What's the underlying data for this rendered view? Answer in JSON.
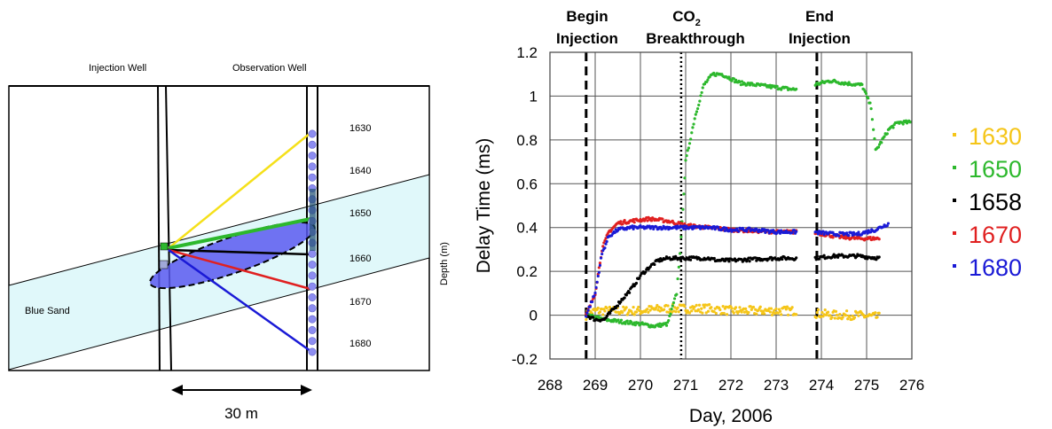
{
  "diagram": {
    "injection_well_label": "Injection Well",
    "observation_well_label": "Observation Well",
    "sand_label": "Blue Sand",
    "depth_axis_label": "Depth (m)",
    "distance_label": "30 m",
    "depth_labels": [
      "1630",
      "1640",
      "1650",
      "1660",
      "1670",
      "1680"
    ]
  },
  "annotations": {
    "begin_injection": [
      "Begin",
      "Injection"
    ],
    "co2_prefix": "CO",
    "co2_subscript": "2",
    "breakthrough": "Breakthrough",
    "end_injection": [
      "End",
      "Injection"
    ]
  },
  "colors": {
    "1630": "#f5c518",
    "1650": "#2db82d",
    "1658": "#000000",
    "1670": "#e02020",
    "1680": "#1a1ad6",
    "sand_fill": "#e0f8fa",
    "plume_fill": "#5b5bf0"
  },
  "chart_data": {
    "type": "scatter",
    "xlabel": "Day, 2006",
    "ylabel": "Delay Time (ms)",
    "xlim": [
      268,
      276
    ],
    "ylim": [
      -0.2,
      1.2
    ],
    "xticks": [
      "268",
      "269",
      "270",
      "271",
      "272",
      "273",
      "274",
      "275",
      "276"
    ],
    "yticks": [
      "-0.2",
      "0",
      "0.2",
      "0.4",
      "0.6",
      "0.8",
      "1",
      "1.2"
    ],
    "grid": true,
    "legend_position": "right",
    "events": [
      {
        "name": "Begin Injection",
        "x": 268.8,
        "style": "dashed"
      },
      {
        "name": "CO2 Breakthrough",
        "x": 270.9,
        "style": "dotted"
      },
      {
        "name": "End Injection",
        "x": 273.9,
        "style": "dashed"
      }
    ],
    "series": [
      {
        "name": "1630",
        "points": [
          [
            268.8,
            0
          ],
          [
            269.0,
            0.02
          ],
          [
            269.3,
            0.02
          ],
          [
            269.6,
            0.02
          ],
          [
            270.0,
            0.02
          ],
          [
            270.5,
            0.03
          ],
          [
            271.0,
            0.03
          ],
          [
            271.5,
            0.03
          ],
          [
            272.0,
            0.02
          ],
          [
            272.5,
            0.02
          ],
          [
            273.0,
            0.02
          ],
          [
            273.4,
            0.02
          ],
          [
            273.8,
            0.01
          ],
          [
            274.3,
            0.0
          ],
          [
            274.8,
            0.0
          ],
          [
            275.3,
            -0.01
          ]
        ]
      },
      {
        "name": "1650",
        "points": [
          [
            268.8,
            0
          ],
          [
            269.0,
            -0.01
          ],
          [
            269.2,
            -0.02
          ],
          [
            269.6,
            -0.03
          ],
          [
            270.0,
            -0.04
          ],
          [
            270.3,
            -0.05
          ],
          [
            270.6,
            -0.04
          ],
          [
            270.8,
            0.1
          ],
          [
            270.9,
            0.35
          ],
          [
            271.0,
            0.7
          ],
          [
            271.2,
            0.9
          ],
          [
            271.4,
            1.05
          ],
          [
            271.6,
            1.1
          ],
          [
            271.8,
            1.1
          ],
          [
            272.2,
            1.06
          ],
          [
            272.6,
            1.05
          ],
          [
            273.0,
            1.04
          ],
          [
            273.4,
            1.03
          ],
          [
            273.8,
            1.05
          ],
          [
            274.2,
            1.07
          ],
          [
            274.5,
            1.06
          ],
          [
            274.9,
            1.05
          ],
          [
            275.1,
            0.95
          ],
          [
            275.2,
            0.75
          ],
          [
            275.35,
            0.8
          ],
          [
            275.5,
            0.85
          ],
          [
            275.7,
            0.88
          ],
          [
            276.0,
            0.88
          ]
        ]
      },
      {
        "name": "1658",
        "points": [
          [
            268.8,
            0
          ],
          [
            269.0,
            -0.02
          ],
          [
            269.2,
            -0.02
          ],
          [
            269.5,
            0.05
          ],
          [
            269.8,
            0.12
          ],
          [
            270.0,
            0.18
          ],
          [
            270.2,
            0.22
          ],
          [
            270.4,
            0.25
          ],
          [
            270.6,
            0.26
          ],
          [
            271.0,
            0.26
          ],
          [
            271.5,
            0.26
          ],
          [
            271.7,
            0.25
          ],
          [
            272.0,
            0.25
          ],
          [
            272.5,
            0.255
          ],
          [
            273.0,
            0.26
          ],
          [
            273.4,
            0.26
          ],
          [
            273.8,
            0.26
          ],
          [
            274.3,
            0.27
          ],
          [
            274.8,
            0.27
          ],
          [
            275.3,
            0.26
          ]
        ]
      },
      {
        "name": "1670",
        "points": [
          [
            268.8,
            0
          ],
          [
            269.0,
            0.1
          ],
          [
            269.15,
            0.3
          ],
          [
            269.3,
            0.38
          ],
          [
            269.5,
            0.42
          ],
          [
            269.8,
            0.43
          ],
          [
            270.2,
            0.44
          ],
          [
            270.6,
            0.43
          ],
          [
            271.0,
            0.41
          ],
          [
            271.5,
            0.4
          ],
          [
            272.0,
            0.39
          ],
          [
            272.5,
            0.385
          ],
          [
            273.0,
            0.38
          ],
          [
            273.4,
            0.38
          ],
          [
            273.8,
            0.38
          ],
          [
            274.3,
            0.36
          ],
          [
            274.8,
            0.35
          ],
          [
            275.3,
            0.35
          ]
        ]
      },
      {
        "name": "1680",
        "points": [
          [
            268.8,
            0
          ],
          [
            269.0,
            0.1
          ],
          [
            269.15,
            0.28
          ],
          [
            269.3,
            0.36
          ],
          [
            269.5,
            0.39
          ],
          [
            269.8,
            0.4
          ],
          [
            270.2,
            0.4
          ],
          [
            270.6,
            0.4
          ],
          [
            271.0,
            0.4
          ],
          [
            271.5,
            0.4
          ],
          [
            272.0,
            0.39
          ],
          [
            272.5,
            0.39
          ],
          [
            273.0,
            0.38
          ],
          [
            273.4,
            0.38
          ],
          [
            273.8,
            0.38
          ],
          [
            274.3,
            0.37
          ],
          [
            274.8,
            0.37
          ],
          [
            275.2,
            0.39
          ],
          [
            275.5,
            0.42
          ]
        ]
      }
    ]
  }
}
